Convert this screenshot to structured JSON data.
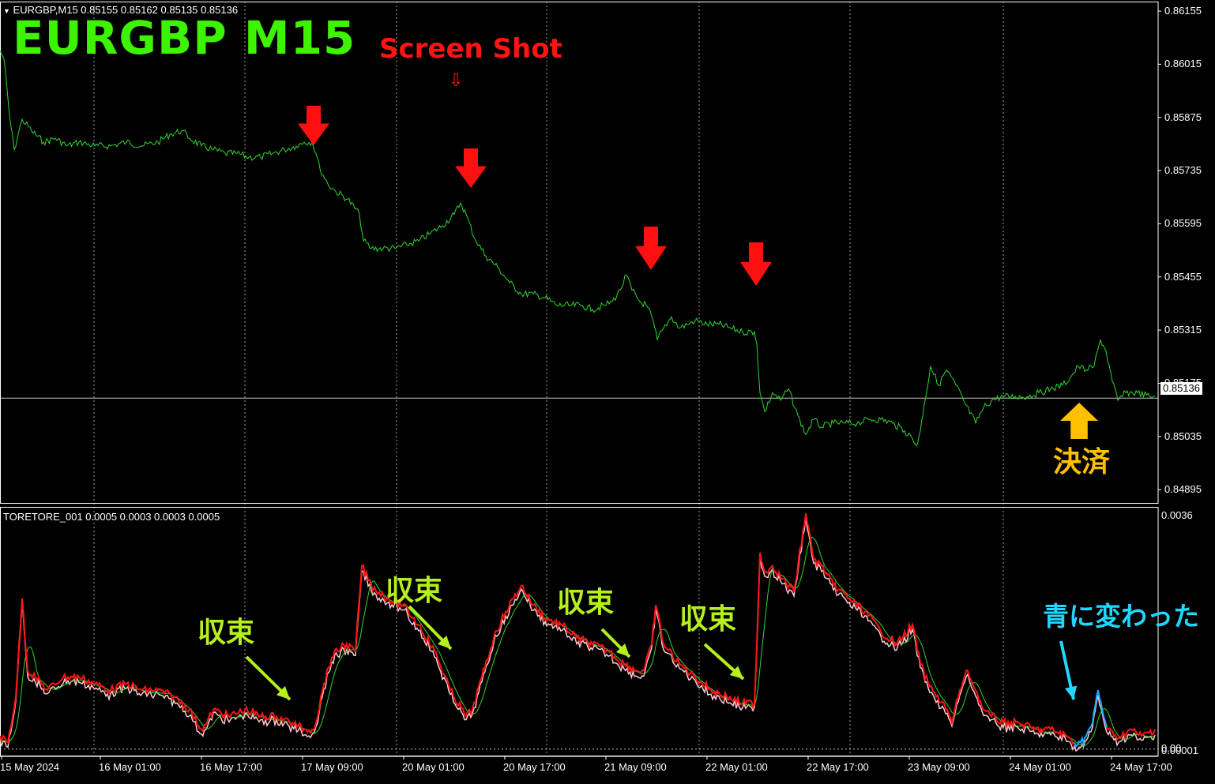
{
  "window": {
    "symbol_header": "EURGBP,M15  0.85155 0.85162 0.85135 0.85136",
    "indicator_header": "TORETORE_001 0.0005 0.0003 0.0003 0.0005",
    "title": "EURGBP  M15",
    "screenshot_label": "Screen Shot",
    "screenshot_arrow": "⇩",
    "current_price": "0.85136",
    "settle_label": "決済",
    "converge_label": "収束",
    "blue_label": "青に変わった"
  },
  "colors": {
    "price_line": "#2fd62f",
    "signal_arrow": "#ff1010",
    "settle_arrow": "#ffc000",
    "annotation_green": "#b6f01c",
    "annotation_blue": "#20d8ff",
    "indicator_main": "#ff1414",
    "indicator_pink": "#ffc8d0",
    "indicator_green": "#2fd62f",
    "indicator_blue": "#1aa6ff",
    "grid": "#c8c8c8"
  },
  "chart_data": [
    {
      "type": "line",
      "name": "EURGBP,M15",
      "y_ticks": [
        "0.86155",
        "0.86015",
        "0.85875",
        "0.85735",
        "0.85595",
        "0.85455",
        "0.85315",
        "0.85175",
        "0.85035",
        "0.84895"
      ],
      "ylim": [
        0.8486,
        0.8618
      ],
      "x_ticks": [
        "15 May 2024",
        "16 May 01:00",
        "16 May 17:00",
        "17 May 09:00",
        "20 May 01:00",
        "20 May 17:00",
        "21 May 09:00",
        "22 May 01:00",
        "22 May 17:00",
        "23 May 09:00",
        "24 May 01:00",
        "24 May 17:00"
      ],
      "x": [
        0,
        5,
        12,
        18,
        28,
        40,
        55,
        70,
        85,
        100,
        120,
        140,
        160,
        180,
        200,
        215,
        230,
        240,
        255,
        270,
        285,
        300,
        315,
        330,
        345,
        360,
        375,
        385,
        395,
        400,
        405,
        415,
        425,
        440,
        455,
        460,
        470,
        485,
        500,
        515,
        530,
        545,
        560,
        575,
        583,
        590,
        600,
        615,
        630,
        645,
        660,
        675,
        690,
        705,
        720,
        735,
        750,
        765,
        775,
        785,
        793,
        800,
        810,
        818,
        825,
        832,
        840,
        850,
        860,
        870,
        880,
        895,
        910,
        925,
        940,
        955,
        958,
        962,
        968,
        978,
        988,
        998,
        1010,
        1020,
        1030,
        1040,
        1055,
        1070,
        1085,
        1100,
        1115,
        1130,
        1145,
        1155,
        1160,
        1165,
        1170,
        1178,
        1188,
        1198,
        1210,
        1222,
        1235,
        1245,
        1255,
        1270,
        1285,
        1300,
        1315,
        1330,
        1345,
        1355,
        1365,
        1375,
        1385,
        1393,
        1400,
        1408,
        1415,
        1425,
        1440,
        1455,
        1462
      ],
      "values": [
        0.8605,
        0.8603,
        0.8588,
        0.8579,
        0.8587,
        0.8584,
        0.8581,
        0.8582,
        0.858,
        0.8581,
        0.858,
        0.858,
        0.8581,
        0.858,
        0.8581,
        0.8583,
        0.8584,
        0.8582,
        0.858,
        0.8579,
        0.8578,
        0.8578,
        0.8577,
        0.8577,
        0.8578,
        0.8579,
        0.858,
        0.8581,
        0.8581,
        0.8578,
        0.8574,
        0.857,
        0.8568,
        0.8566,
        0.8562,
        0.8555,
        0.8553,
        0.8553,
        0.8553,
        0.8554,
        0.8555,
        0.8557,
        0.8559,
        0.8562,
        0.8565,
        0.8562,
        0.8556,
        0.8551,
        0.8548,
        0.8544,
        0.8541,
        0.8541,
        0.854,
        0.8538,
        0.8538,
        0.8538,
        0.8537,
        0.8538,
        0.8539,
        0.8542,
        0.8546,
        0.8542,
        0.8539,
        0.8538,
        0.8535,
        0.8529,
        0.8532,
        0.8535,
        0.8532,
        0.8533,
        0.8534,
        0.8533,
        0.8533,
        0.8532,
        0.8531,
        0.8531,
        0.8528,
        0.8515,
        0.851,
        0.8515,
        0.8513,
        0.8516,
        0.8509,
        0.8504,
        0.8508,
        0.8506,
        0.8507,
        0.8507,
        0.8507,
        0.8508,
        0.8508,
        0.8507,
        0.8505,
        0.8503,
        0.8501,
        0.8505,
        0.8512,
        0.8522,
        0.8517,
        0.8521,
        0.8517,
        0.8512,
        0.8507,
        0.8511,
        0.8513,
        0.8514,
        0.8514,
        0.8514,
        0.8515,
        0.8516,
        0.8517,
        0.8519,
        0.8522,
        0.8521,
        0.8522,
        0.8529,
        0.8526,
        0.8518,
        0.8513,
        0.8515,
        0.8515,
        0.8514,
        0.8514
      ]
    },
    {
      "type": "line",
      "name": "TORETORE_001",
      "y_ticks": [
        "0.0036",
        "0.00001",
        "0.00"
      ],
      "ylim": [
        -0.0001,
        0.0037
      ],
      "x": [
        0,
        10,
        20,
        28,
        35,
        45,
        60,
        80,
        100,
        120,
        140,
        160,
        180,
        200,
        220,
        240,
        255,
        262,
        270,
        290,
        310,
        330,
        350,
        370,
        385,
        395,
        400,
        410,
        420,
        435,
        450,
        458,
        470,
        490,
        510,
        530,
        550,
        570,
        590,
        598,
        610,
        625,
        640,
        660,
        675,
        690,
        710,
        730,
        750,
        770,
        790,
        805,
        815,
        825,
        830,
        840,
        860,
        880,
        900,
        920,
        940,
        955,
        958,
        962,
        968,
        978,
        990,
        1005,
        1020,
        1030,
        1040,
        1055,
        1075,
        1095,
        1115,
        1135,
        1155,
        1165,
        1175,
        1185,
        1195,
        1205,
        1215,
        1225,
        1235,
        1245,
        1255,
        1270,
        1290,
        1310,
        1330,
        1350,
        1360,
        1368,
        1375,
        1383,
        1390,
        1397,
        1403,
        1410,
        1420,
        1430,
        1445,
        1462
      ],
      "series": [
        {
          "values": [
            0.0002,
            0.0001,
            0.0008,
            0.0023,
            0.0012,
            0.0011,
            0.0009,
            0.0011,
            0.0011,
            0.001,
            0.0009,
            0.001,
            0.0009,
            0.0009,
            0.0008,
            0.0006,
            0.0003,
            0.0004,
            0.0006,
            0.0005,
            0.0006,
            0.0005,
            0.0005,
            0.0004,
            0.0003,
            0.0003,
            0.0004,
            0.001,
            0.0014,
            0.0016,
            0.0015,
            0.0028,
            0.0025,
            0.0023,
            0.0022,
            0.0019,
            0.0015,
            0.0009,
            0.0005,
            0.0006,
            0.0011,
            0.0017,
            0.0021,
            0.0025,
            0.0022,
            0.002,
            0.0019,
            0.0017,
            0.0016,
            0.0015,
            0.0013,
            0.0012,
            0.0012,
            0.0016,
            0.0022,
            0.0016,
            0.0013,
            0.0011,
            0.0009,
            0.0008,
            0.0007,
            0.0007,
            0.0016,
            0.003,
            0.0027,
            0.0028,
            0.0026,
            0.0024,
            0.0036,
            0.0029,
            0.0028,
            0.0025,
            0.0023,
            0.0021,
            0.0018,
            0.0016,
            0.0019,
            0.0013,
            0.001,
            0.0008,
            0.0007,
            0.0004,
            0.0009,
            0.0012,
            0.0009,
            0.0006,
            0.0005,
            0.0004,
            0.0004,
            0.0003,
            0.0003,
            0.0002,
            0.0001,
            0.0001,
            0.0002,
            0.0004,
            0.0009,
            0.0005,
            0.0003,
            0.0002,
            0.0002,
            0.0003,
            0.0002,
            0.0003
          ]
        }
      ]
    }
  ],
  "annotations": {
    "signal_arrows_count": 4
  }
}
